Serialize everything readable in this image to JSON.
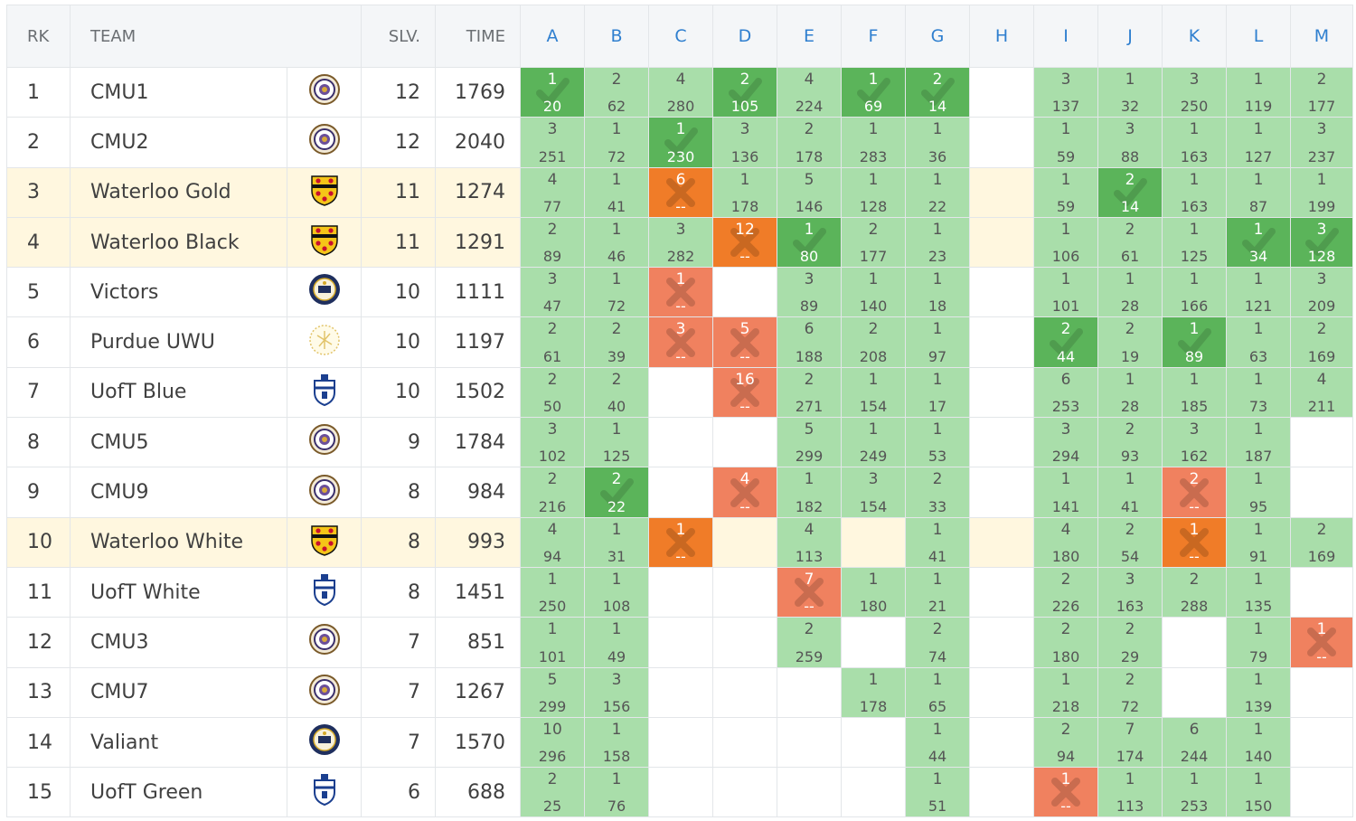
{
  "header": {
    "rank": "RK",
    "team": "TEAM",
    "solved": "SLV.",
    "time": "TIME",
    "problems": [
      "A",
      "B",
      "C",
      "D",
      "E",
      "F",
      "G",
      "H",
      "I",
      "J",
      "K",
      "L",
      "M"
    ]
  },
  "colors": {
    "solved": "#a9deaa",
    "first_solve": "#5bb45a",
    "failed": "#f0815f",
    "highlight_row": "#fff7df",
    "header_link": "#2f7fcf"
  },
  "rows": [
    {
      "rank": "1",
      "team": "CMU1",
      "logo": "cmu-seal-icon",
      "solved": "12",
      "time": "1769",
      "hl": false,
      "cells": [
        [
          "1",
          "20",
          "F"
        ],
        [
          "2",
          "62",
          "S"
        ],
        [
          "4",
          "280",
          "S"
        ],
        [
          "2",
          "105",
          "F"
        ],
        [
          "4",
          "224",
          "S"
        ],
        [
          "1",
          "69",
          "F"
        ],
        [
          "2",
          "14",
          "F"
        ],
        null,
        [
          "3",
          "137",
          "S"
        ],
        [
          "1",
          "32",
          "S"
        ],
        [
          "3",
          "250",
          "S"
        ],
        [
          "1",
          "119",
          "S"
        ],
        [
          "2",
          "177",
          "S"
        ]
      ]
    },
    {
      "rank": "2",
      "team": "CMU2",
      "logo": "cmu-seal-icon",
      "solved": "12",
      "time": "2040",
      "hl": false,
      "cells": [
        [
          "3",
          "251",
          "S"
        ],
        [
          "1",
          "72",
          "S"
        ],
        [
          "1",
          "230",
          "F"
        ],
        [
          "3",
          "136",
          "S"
        ],
        [
          "2",
          "178",
          "S"
        ],
        [
          "1",
          "283",
          "S"
        ],
        [
          "1",
          "36",
          "S"
        ],
        null,
        [
          "1",
          "59",
          "S"
        ],
        [
          "3",
          "88",
          "S"
        ],
        [
          "1",
          "163",
          "S"
        ],
        [
          "1",
          "127",
          "S"
        ],
        [
          "3",
          "237",
          "S"
        ]
      ]
    },
    {
      "rank": "3",
      "team": "Waterloo Gold",
      "logo": "waterloo-crest-icon",
      "solved": "11",
      "time": "1274",
      "hl": true,
      "cells": [
        [
          "4",
          "77",
          "S"
        ],
        [
          "1",
          "41",
          "S"
        ],
        [
          "6",
          "--",
          "X1"
        ],
        [
          "1",
          "178",
          "S"
        ],
        [
          "5",
          "146",
          "S"
        ],
        [
          "1",
          "128",
          "S"
        ],
        [
          "1",
          "22",
          "S"
        ],
        null,
        [
          "1",
          "59",
          "S"
        ],
        [
          "2",
          "14",
          "F"
        ],
        [
          "1",
          "163",
          "S"
        ],
        [
          "1",
          "87",
          "S"
        ],
        [
          "1",
          "199",
          "S"
        ]
      ]
    },
    {
      "rank": "4",
      "team": "Waterloo Black",
      "logo": "waterloo-crest-icon",
      "solved": "11",
      "time": "1291",
      "hl": true,
      "cells": [
        [
          "2",
          "89",
          "S"
        ],
        [
          "1",
          "46",
          "S"
        ],
        [
          "3",
          "282",
          "S"
        ],
        [
          "12",
          "--",
          "X1"
        ],
        [
          "1",
          "80",
          "F"
        ],
        [
          "2",
          "177",
          "S"
        ],
        [
          "1",
          "23",
          "S"
        ],
        null,
        [
          "1",
          "106",
          "S"
        ],
        [
          "2",
          "61",
          "S"
        ],
        [
          "1",
          "125",
          "S"
        ],
        [
          "1",
          "34",
          "F"
        ],
        [
          "3",
          "128",
          "F"
        ]
      ]
    },
    {
      "rank": "5",
      "team": "Victors",
      "logo": "michigan-seal-icon",
      "solved": "10",
      "time": "1111",
      "hl": false,
      "cells": [
        [
          "3",
          "47",
          "S"
        ],
        [
          "1",
          "72",
          "S"
        ],
        [
          "1",
          "--",
          "X"
        ],
        null,
        [
          "3",
          "89",
          "S"
        ],
        [
          "1",
          "140",
          "S"
        ],
        [
          "1",
          "18",
          "S"
        ],
        null,
        [
          "1",
          "101",
          "S"
        ],
        [
          "1",
          "28",
          "S"
        ],
        [
          "1",
          "166",
          "S"
        ],
        [
          "1",
          "121",
          "S"
        ],
        [
          "3",
          "209",
          "S"
        ]
      ]
    },
    {
      "rank": "6",
      "team": "Purdue UWU",
      "logo": "purdue-seal-icon",
      "solved": "10",
      "time": "1197",
      "hl": false,
      "cells": [
        [
          "2",
          "61",
          "S"
        ],
        [
          "2",
          "39",
          "S"
        ],
        [
          "3",
          "--",
          "X"
        ],
        [
          "5",
          "--",
          "X"
        ],
        [
          "6",
          "188",
          "S"
        ],
        [
          "2",
          "208",
          "S"
        ],
        [
          "1",
          "97",
          "S"
        ],
        null,
        [
          "2",
          "44",
          "F"
        ],
        [
          "2",
          "19",
          "S"
        ],
        [
          "1",
          "89",
          "F"
        ],
        [
          "1",
          "63",
          "S"
        ],
        [
          "2",
          "169",
          "S"
        ]
      ]
    },
    {
      "rank": "7",
      "team": "UofT Blue",
      "logo": "uoft-crest-icon",
      "solved": "10",
      "time": "1502",
      "hl": false,
      "cells": [
        [
          "2",
          "50",
          "S"
        ],
        [
          "2",
          "40",
          "S"
        ],
        null,
        [
          "16",
          "--",
          "X"
        ],
        [
          "2",
          "271",
          "S"
        ],
        [
          "1",
          "154",
          "S"
        ],
        [
          "1",
          "17",
          "S"
        ],
        null,
        [
          "6",
          "253",
          "S"
        ],
        [
          "1",
          "28",
          "S"
        ],
        [
          "1",
          "185",
          "S"
        ],
        [
          "1",
          "73",
          "S"
        ],
        [
          "4",
          "211",
          "S"
        ]
      ]
    },
    {
      "rank": "8",
      "team": "CMU5",
      "logo": "cmu-seal-icon",
      "solved": "9",
      "time": "1784",
      "hl": false,
      "cells": [
        [
          "3",
          "102",
          "S"
        ],
        [
          "1",
          "125",
          "S"
        ],
        null,
        null,
        [
          "5",
          "299",
          "S"
        ],
        [
          "1",
          "249",
          "S"
        ],
        [
          "1",
          "53",
          "S"
        ],
        null,
        [
          "3",
          "294",
          "S"
        ],
        [
          "2",
          "93",
          "S"
        ],
        [
          "3",
          "162",
          "S"
        ],
        [
          "1",
          "187",
          "S"
        ],
        null
      ]
    },
    {
      "rank": "9",
      "team": "CMU9",
      "logo": "cmu-seal-icon",
      "solved": "8",
      "time": "984",
      "hl": false,
      "cells": [
        [
          "2",
          "216",
          "S"
        ],
        [
          "2",
          "22",
          "F"
        ],
        null,
        [
          "4",
          "--",
          "X"
        ],
        [
          "1",
          "182",
          "S"
        ],
        [
          "3",
          "154",
          "S"
        ],
        [
          "2",
          "33",
          "S"
        ],
        null,
        [
          "1",
          "141",
          "S"
        ],
        [
          "1",
          "41",
          "S"
        ],
        [
          "2",
          "--",
          "X"
        ],
        [
          "1",
          "95",
          "S"
        ],
        null
      ]
    },
    {
      "rank": "10",
      "team": "Waterloo White",
      "logo": "waterloo-crest-icon",
      "solved": "8",
      "time": "993",
      "hl": true,
      "cells": [
        [
          "4",
          "94",
          "S"
        ],
        [
          "1",
          "31",
          "S"
        ],
        [
          "1",
          "--",
          "X1"
        ],
        null,
        [
          "4",
          "113",
          "S"
        ],
        null,
        [
          "1",
          "41",
          "S"
        ],
        null,
        [
          "4",
          "180",
          "S"
        ],
        [
          "2",
          "54",
          "S"
        ],
        [
          "1",
          "--",
          "X1"
        ],
        [
          "1",
          "91",
          "S"
        ],
        [
          "2",
          "169",
          "S"
        ]
      ]
    },
    {
      "rank": "11",
      "team": "UofT White",
      "logo": "uoft-crest-icon",
      "solved": "8",
      "time": "1451",
      "hl": false,
      "cells": [
        [
          "1",
          "250",
          "S"
        ],
        [
          "1",
          "108",
          "S"
        ],
        null,
        null,
        [
          "7",
          "--",
          "X"
        ],
        [
          "1",
          "180",
          "S"
        ],
        [
          "1",
          "21",
          "S"
        ],
        null,
        [
          "2",
          "226",
          "S"
        ],
        [
          "3",
          "163",
          "S"
        ],
        [
          "2",
          "288",
          "S"
        ],
        [
          "1",
          "135",
          "S"
        ],
        null
      ]
    },
    {
      "rank": "12",
      "team": "CMU3",
      "logo": "cmu-seal-icon",
      "solved": "7",
      "time": "851",
      "hl": false,
      "cells": [
        [
          "1",
          "101",
          "S"
        ],
        [
          "1",
          "49",
          "S"
        ],
        null,
        null,
        [
          "2",
          "259",
          "S"
        ],
        null,
        [
          "2",
          "74",
          "S"
        ],
        null,
        [
          "2",
          "180",
          "S"
        ],
        [
          "2",
          "29",
          "S"
        ],
        null,
        [
          "1",
          "79",
          "S"
        ],
        [
          "1",
          "--",
          "X"
        ]
      ]
    },
    {
      "rank": "13",
      "team": "CMU7",
      "logo": "cmu-seal-icon",
      "solved": "7",
      "time": "1267",
      "hl": false,
      "cells": [
        [
          "5",
          "299",
          "S"
        ],
        [
          "3",
          "156",
          "S"
        ],
        null,
        null,
        null,
        [
          "1",
          "178",
          "S"
        ],
        [
          "1",
          "65",
          "S"
        ],
        null,
        [
          "1",
          "218",
          "S"
        ],
        [
          "2",
          "72",
          "S"
        ],
        null,
        [
          "1",
          "139",
          "S"
        ],
        null
      ]
    },
    {
      "rank": "14",
      "team": "Valiant",
      "logo": "michigan-seal-icon",
      "solved": "7",
      "time": "1570",
      "hl": false,
      "cells": [
        [
          "10",
          "296",
          "S"
        ],
        [
          "1",
          "158",
          "S"
        ],
        null,
        null,
        null,
        null,
        [
          "1",
          "44",
          "S"
        ],
        null,
        [
          "2",
          "94",
          "S"
        ],
        [
          "7",
          "174",
          "S"
        ],
        [
          "6",
          "244",
          "S"
        ],
        [
          "1",
          "140",
          "S"
        ],
        null
      ]
    },
    {
      "rank": "15",
      "team": "UofT Green",
      "logo": "uoft-crest-icon",
      "solved": "6",
      "time": "688",
      "hl": false,
      "cells": [
        [
          "2",
          "25",
          "S"
        ],
        [
          "1",
          "76",
          "S"
        ],
        null,
        null,
        null,
        null,
        [
          "1",
          "51",
          "S"
        ],
        null,
        [
          "1",
          "--",
          "X"
        ],
        [
          "1",
          "113",
          "S"
        ],
        [
          "1",
          "253",
          "S"
        ],
        [
          "1",
          "150",
          "S"
        ],
        null
      ]
    }
  ]
}
